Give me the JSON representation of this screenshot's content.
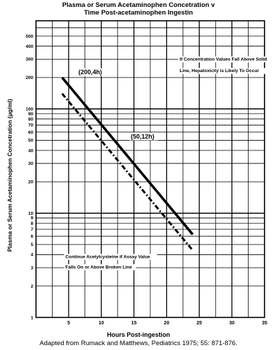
{
  "chart_data": {
    "type": "line",
    "title": "Plasma or Serum Acetaminophen Concetration v",
    "subtitle": "Time Post-acetaminophen Ingestin",
    "ylabel": "Plasma or Serum Acetaminophen Concetration (μg/ml)",
    "xlabel": "Hours Post-ingestion",
    "source": "Adapted from Rumack and Matthews, Pediatrics 1975; 55: 871-876.",
    "xlim": [
      0,
      35
    ],
    "ylim": [
      1,
      700
    ],
    "yscale": "log",
    "grid": true,
    "x_ticks": [
      5,
      10,
      15,
      20,
      25,
      30,
      35
    ],
    "y_ticks": [
      1,
      2,
      3,
      4,
      5,
      6,
      7,
      8,
      9,
      10,
      20,
      30,
      40,
      50,
      60,
      70,
      80,
      90,
      100,
      200,
      300,
      400,
      500
    ],
    "y_tick_labels": [
      "1",
      "2",
      "3",
      "4",
      "5",
      "6",
      "7",
      "8",
      "9",
      "10",
      "20",
      "30",
      "40",
      "50",
      "60",
      "70",
      "80",
      "90",
      "100",
      "200",
      "300",
      "400",
      "500"
    ],
    "series": [
      {
        "style": "solid",
        "x": [
          4,
          24
        ],
        "values": [
          200,
          6.25
        ]
      },
      {
        "style": "dashed",
        "x": [
          4,
          24
        ],
        "values": [
          140,
          4.4
        ]
      }
    ],
    "annotations": [
      {
        "text": "(200,4h)",
        "x": 6.5,
        "y": 215
      },
      {
        "text": "(50,12h)",
        "x": 14.5,
        "y": 52
      },
      {
        "text": "If Concentration Values Fall Above Solid",
        "x": 22,
        "y": 290
      },
      {
        "text": "Line, Hepatoxicity is Likely To Occur",
        "x": 22,
        "y": 225
      },
      {
        "text": "Continue Acetylcysteine if Assay Value",
        "x": 4.5,
        "y": 3.7
      },
      {
        "text": "Falls On or Above Broken Line",
        "x": 4.5,
        "y": 2.95
      }
    ]
  }
}
